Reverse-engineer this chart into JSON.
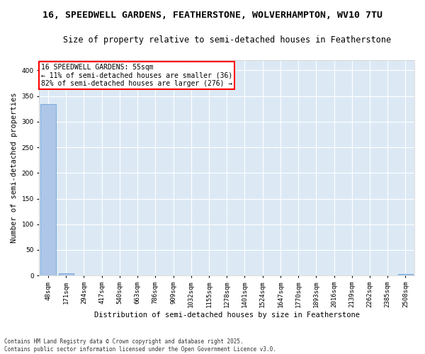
{
  "title": "16, SPEEDWELL GARDENS, FEATHERSTONE, WOLVERHAMPTON, WV10 7TU",
  "subtitle": "Size of property relative to semi-detached houses in Featherstone",
  "xlabel": "Distribution of semi-detached houses by size in Featherstone",
  "ylabel": "Number of semi-detached properties",
  "annotation_line1": "16 SPEEDWELL GARDENS: 55sqm",
  "annotation_line2": "← 11% of semi-detached houses are smaller (36)",
  "annotation_line3": "82% of semi-detached houses are larger (276) →",
  "categories": [
    "48sqm",
    "171sqm",
    "294sqm",
    "417sqm",
    "540sqm",
    "663sqm",
    "786sqm",
    "909sqm",
    "1032sqm",
    "1155sqm",
    "1278sqm",
    "1401sqm",
    "1524sqm",
    "1647sqm",
    "1770sqm",
    "1893sqm",
    "2016sqm",
    "2139sqm",
    "2262sqm",
    "2385sqm",
    "2508sqm"
  ],
  "values": [
    335,
    5,
    0,
    0,
    0,
    0,
    0,
    0,
    0,
    0,
    0,
    0,
    0,
    0,
    0,
    0,
    0,
    0,
    0,
    0,
    3
  ],
  "bar_color": "#aec6e8",
  "bar_edge_color": "#5b9bd5",
  "background_color": "#dce9f5",
  "grid_color": "#ffffff",
  "annotation_box_color": "#ff0000",
  "ylim": [
    0,
    420
  ],
  "yticks": [
    0,
    50,
    100,
    150,
    200,
    250,
    300,
    350,
    400
  ],
  "footer": "Contains HM Land Registry data © Crown copyright and database right 2025.\nContains public sector information licensed under the Open Government Licence v3.0.",
  "title_fontsize": 9.5,
  "subtitle_fontsize": 8.5,
  "axis_label_fontsize": 7.5,
  "tick_fontsize": 6.5,
  "annotation_fontsize": 7,
  "footer_fontsize": 5.5
}
